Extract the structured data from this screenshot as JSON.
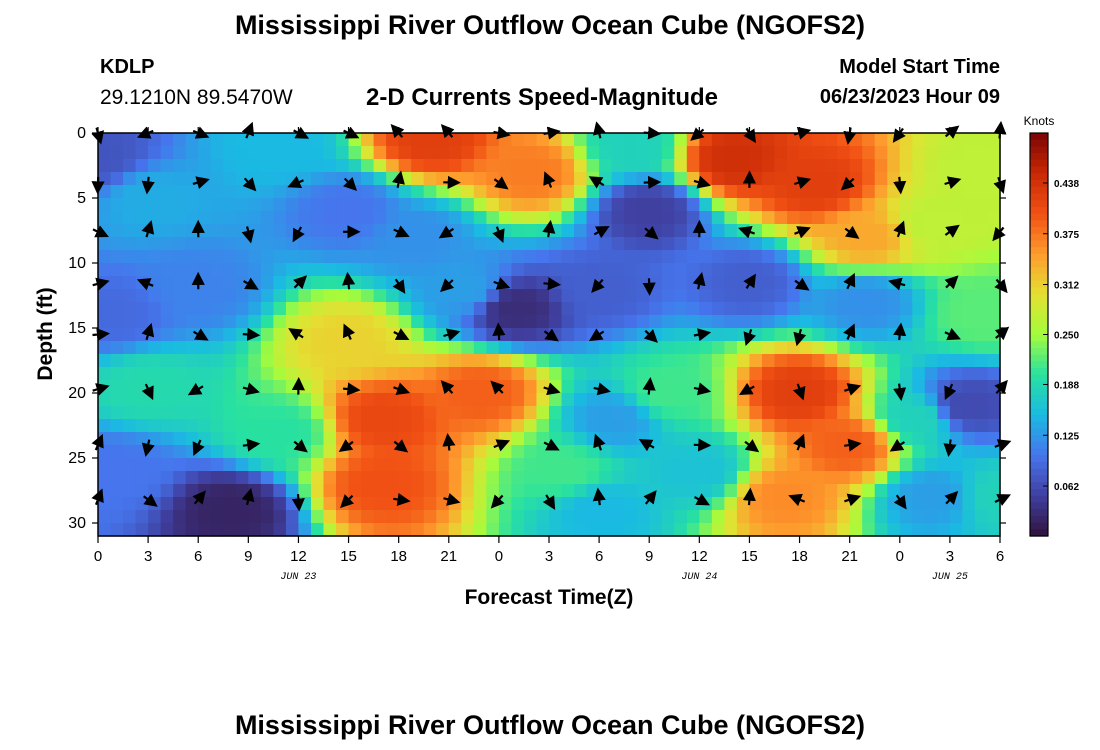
{
  "header": {
    "title": "Mississippi River Outflow Ocean Cube (NGOFS2)",
    "station_id": "KDLP",
    "station_coords": "29.1210N  89.5470W",
    "subtitle": "2-D Currents Speed-Magnitude",
    "model_start_label": "Model Start Time",
    "model_start_value": "06/23/2023 Hour 09"
  },
  "footer": {
    "title_repeat": "Mississippi River Outflow Ocean Cube (NGOFS2)"
  },
  "chart_data": {
    "type": "heatmap",
    "xlabel": "Forecast Time(Z)",
    "ylabel": "Depth (ft)",
    "x_ticks": [
      "0",
      "3",
      "6",
      "9",
      "12",
      "15",
      "18",
      "21",
      "0",
      "3",
      "6",
      "9",
      "12",
      "15",
      "18",
      "21",
      "0",
      "3",
      "6"
    ],
    "date_labels": [
      {
        "text": "JUN 23",
        "at_tick": 4
      },
      {
        "text": "JUN 24",
        "at_tick": 12
      },
      {
        "text": "JUN 25",
        "at_tick": 17
      }
    ],
    "y_ticks": [
      0,
      5,
      10,
      15,
      20,
      25,
      30
    ],
    "ylim": [
      0,
      31
    ],
    "colorbar": {
      "label": "Knots",
      "ticks": [
        "0.438",
        "0.375",
        "0.312",
        "0.250",
        "0.188",
        "0.125",
        "0.062"
      ],
      "tick_values": [
        0.438,
        0.375,
        0.312,
        0.25,
        0.188,
        0.125,
        0.062
      ],
      "range": [
        0,
        0.5
      ]
    },
    "vector_depths": [
      0,
      3.8,
      7.6,
      11.6,
      15.5,
      19.7,
      24.0,
      28.2
    ],
    "vector_times": [
      0,
      3,
      6,
      9,
      12,
      15,
      18,
      21,
      24,
      27,
      30,
      33,
      36,
      39,
      42,
      45,
      48,
      51,
      54
    ],
    "speed_anchors": [
      {
        "t": 0,
        "d": 2,
        "v": 0.07
      },
      {
        "t": 1,
        "d": 14,
        "v": 0.09
      },
      {
        "t": 3,
        "d": 5,
        "v": 0.14
      },
      {
        "t": 3,
        "d": 19.5,
        "v": 0.19
      },
      {
        "t": 1,
        "d": 26,
        "v": 0.1
      },
      {
        "t": 8,
        "d": 29,
        "v": 0.02
      },
      {
        "t": 6,
        "d": 12,
        "v": 0.11
      },
      {
        "t": 11,
        "d": 1,
        "v": 0.15
      },
      {
        "t": 15,
        "d": 6,
        "v": 0.1
      },
      {
        "t": 20,
        "d": 0.5,
        "v": 0.42
      },
      {
        "t": 26,
        "d": 3,
        "v": 0.37
      },
      {
        "t": 19,
        "d": 8,
        "v": 0.12
      },
      {
        "t": 22,
        "d": 12,
        "v": 0.13
      },
      {
        "t": 25,
        "d": 13.5,
        "v": 0.03
      },
      {
        "t": 30,
        "d": 12,
        "v": 0.08
      },
      {
        "t": 15,
        "d": 16,
        "v": 0.31
      },
      {
        "t": 17,
        "d": 22,
        "v": 0.41
      },
      {
        "t": 23,
        "d": 20,
        "v": 0.39
      },
      {
        "t": 17,
        "d": 27,
        "v": 0.4
      },
      {
        "t": 11,
        "d": 23,
        "v": 0.2
      },
      {
        "t": 28,
        "d": 26,
        "v": 0.21
      },
      {
        "t": 31,
        "d": 22,
        "v": 0.13
      },
      {
        "t": 30,
        "d": 29,
        "v": 0.15
      },
      {
        "t": 33,
        "d": 6,
        "v": 0.05
      },
      {
        "t": 32,
        "d": 1,
        "v": 0.18
      },
      {
        "t": 38,
        "d": 2,
        "v": 0.44
      },
      {
        "t": 43,
        "d": 4,
        "v": 0.42
      },
      {
        "t": 46,
        "d": 8,
        "v": 0.34
      },
      {
        "t": 39,
        "d": 11.5,
        "v": 0.08
      },
      {
        "t": 46,
        "d": 13,
        "v": 0.12
      },
      {
        "t": 50,
        "d": 7,
        "v": 0.27
      },
      {
        "t": 53,
        "d": 3,
        "v": 0.27
      },
      {
        "t": 53,
        "d": 14,
        "v": 0.22
      },
      {
        "t": 34,
        "d": 20,
        "v": 0.21
      },
      {
        "t": 42,
        "d": 20,
        "v": 0.42
      },
      {
        "t": 45,
        "d": 24,
        "v": 0.39
      },
      {
        "t": 41,
        "d": 28,
        "v": 0.36
      },
      {
        "t": 36,
        "d": 26,
        "v": 0.16
      },
      {
        "t": 49,
        "d": 22,
        "v": 0.18
      },
      {
        "t": 52,
        "d": 21,
        "v": 0.06
      },
      {
        "t": 50,
        "d": 28,
        "v": 0.13
      },
      {
        "t": 54,
        "d": 28,
        "v": 0.18
      }
    ]
  }
}
